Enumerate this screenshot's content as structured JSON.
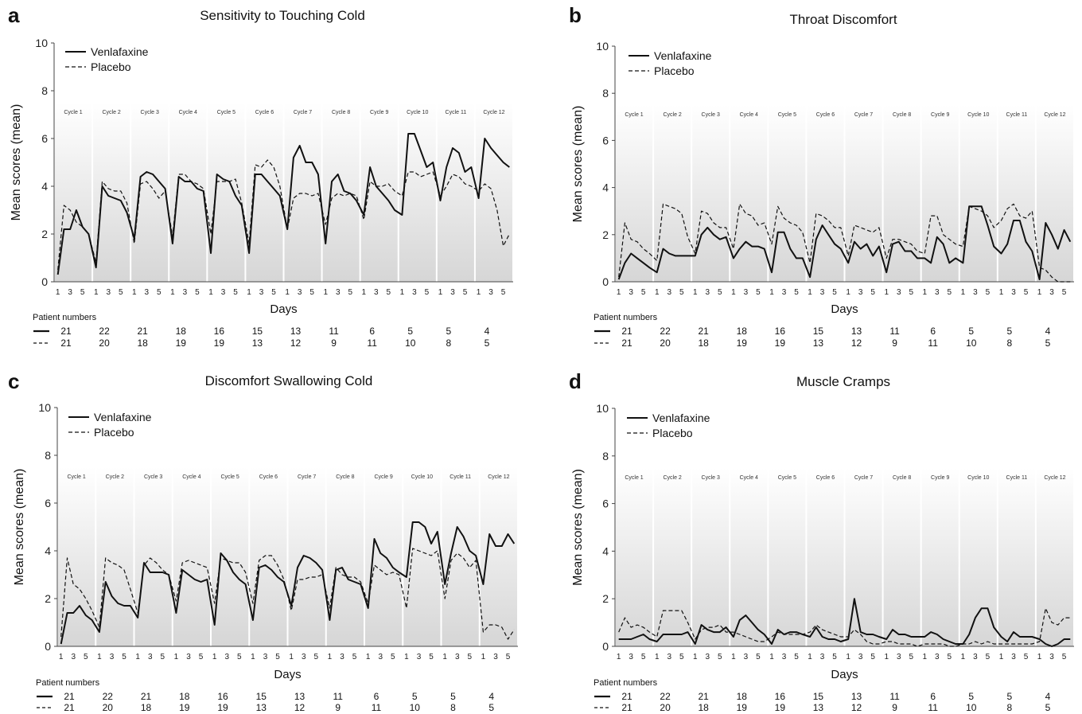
{
  "figure": {
    "x_tick_labels": [
      "1",
      "3",
      "5"
    ],
    "cycle_labels": [
      "Cycle 1",
      "Cycle 2",
      "Cycle 3",
      "Cycle 4",
      "Cycle 5",
      "Cycle 6",
      "Cycle 7",
      "Cycle 8",
      "Cycle 9",
      "Cycle 10",
      "Cycle 11",
      "Cycle 12"
    ],
    "patient_numbers_label": "Patient numbers",
    "patient_numbers": {
      "Venlafaxine": [
        "21",
        "22",
        "21",
        "18",
        "16",
        "15",
        "13",
        "11",
        "6",
        "5",
        "5",
        "4"
      ],
      "Placebo": [
        "21",
        "20",
        "18",
        "19",
        "19",
        "13",
        "12",
        "9",
        "11",
        "10",
        "8",
        "5"
      ]
    },
    "colors": {
      "venlafaxine": "#111111",
      "placebo": "#111111",
      "shading_top": "#ffffff",
      "shading_bottom": "#d9d9d9"
    }
  },
  "chart_data": [
    {
      "panel_label": "a",
      "type": "line",
      "title": "Sensitivity to Touching Cold",
      "xlabel": "Days",
      "ylabel": "Mean scores (mean)",
      "ylim": [
        0,
        10
      ],
      "yticks": [
        "0",
        "2",
        "4",
        "6",
        "8",
        "10"
      ],
      "legend": [
        "Venlafaxine",
        "Placebo"
      ],
      "legend_position": "top-left",
      "x": "cycle days 1-6 for cycles 1-12",
      "series": [
        {
          "name": "Venlafaxine",
          "style": "solid",
          "values": [
            0.3,
            2.2,
            2.2,
            3.0,
            2.3,
            2.0,
            0.6,
            4.0,
            3.6,
            3.5,
            3.4,
            2.9,
            1.8,
            4.4,
            4.6,
            4.5,
            4.2,
            3.9,
            1.6,
            4.4,
            4.2,
            4.2,
            3.9,
            3.8,
            1.2,
            4.5,
            4.3,
            4.2,
            3.6,
            3.2,
            1.2,
            4.5,
            4.5,
            4.2,
            3.9,
            3.6,
            2.2,
            5.2,
            5.7,
            5.0,
            5.0,
            4.5,
            1.6,
            4.2,
            4.5,
            3.8,
            3.7,
            3.4,
            2.8,
            4.8,
            4.0,
            3.7,
            3.4,
            3.0,
            2.8,
            6.2,
            6.2,
            5.5,
            4.8,
            5.0,
            3.4,
            4.8,
            5.6,
            5.4,
            4.6,
            4.8,
            3.5,
            6.0,
            5.6,
            5.3,
            5.0,
            4.8
          ]
        },
        {
          "name": "Placebo",
          "style": "dashed",
          "values": [
            0.5,
            3.2,
            3.0,
            2.5,
            2.3,
            2.0,
            0.8,
            4.2,
            3.9,
            3.8,
            3.8,
            3.3,
            1.6,
            4.1,
            4.2,
            3.9,
            3.5,
            3.8,
            1.9,
            4.5,
            4.5,
            4.2,
            4.1,
            3.9,
            2.0,
            4.2,
            4.2,
            4.2,
            4.3,
            3.3,
            1.6,
            4.9,
            4.8,
            5.1,
            4.8,
            4.0,
            2.2,
            3.5,
            3.7,
            3.7,
            3.6,
            3.7,
            2.4,
            3.5,
            3.7,
            3.6,
            3.7,
            3.6,
            2.6,
            4.2,
            4.0,
            4.0,
            4.1,
            3.8,
            3.6,
            4.6,
            4.6,
            4.4,
            4.5,
            4.6,
            3.6,
            4.0,
            4.5,
            4.4,
            4.1,
            4.0,
            3.8,
            4.1,
            3.9,
            3.0,
            1.5,
            2.0
          ]
        }
      ]
    },
    {
      "panel_label": "b",
      "type": "line",
      "title": "Throat Discomfort",
      "xlabel": "Days",
      "ylabel": "Mean scores (mean)",
      "ylim": [
        0,
        10
      ],
      "yticks": [
        "0",
        "2",
        "4",
        "6",
        "8",
        "10"
      ],
      "legend": [
        "Venlafaxine",
        "Placebo"
      ],
      "legend_position": "top-left",
      "x": "cycle days 1-6 for cycles 1-12",
      "series": [
        {
          "name": "Venlafaxine",
          "style": "solid",
          "values": [
            0.1,
            0.8,
            1.2,
            1.0,
            0.8,
            0.6,
            0.4,
            1.4,
            1.2,
            1.1,
            1.1,
            1.1,
            1.1,
            2.0,
            2.3,
            2.0,
            1.8,
            1.9,
            1.0,
            1.4,
            1.7,
            1.5,
            1.5,
            1.4,
            0.4,
            2.1,
            2.1,
            1.4,
            1.0,
            1.0,
            0.2,
            1.8,
            2.4,
            2.0,
            1.6,
            1.4,
            0.8,
            1.7,
            1.4,
            1.6,
            1.1,
            1.5,
            0.4,
            1.6,
            1.7,
            1.3,
            1.3,
            1.0,
            1.0,
            0.8,
            1.9,
            1.6,
            0.8,
            1.0,
            0.8,
            3.2,
            3.2,
            3.2,
            2.4,
            1.5,
            1.2,
            1.6,
            2.6,
            2.6,
            1.7,
            1.3,
            0.1,
            2.5,
            2.0,
            1.4,
            2.2,
            1.7
          ]
        },
        {
          "name": "Placebo",
          "style": "dashed",
          "values": [
            0.2,
            2.5,
            1.8,
            1.7,
            1.4,
            1.2,
            0.9,
            3.3,
            3.2,
            3.1,
            2.9,
            1.9,
            1.2,
            3.0,
            2.9,
            2.5,
            2.3,
            2.3,
            1.4,
            3.3,
            2.9,
            2.8,
            2.4,
            2.5,
            1.6,
            3.2,
            2.7,
            2.5,
            2.4,
            2.1,
            0.8,
            2.9,
            2.8,
            2.6,
            2.3,
            2.3,
            1.1,
            2.4,
            2.3,
            2.2,
            2.1,
            2.3,
            1.0,
            1.8,
            1.8,
            1.7,
            1.6,
            1.3,
            1.2,
            2.8,
            2.8,
            2.0,
            1.8,
            1.6,
            1.5,
            3.2,
            3.1,
            3.0,
            2.8,
            2.3,
            2.6,
            3.1,
            3.3,
            2.8,
            2.7,
            3.0,
            0.6,
            0.5,
            0.2,
            0.0,
            0.0,
            0.0
          ]
        }
      ]
    },
    {
      "panel_label": "c",
      "type": "line",
      "title": "Discomfort Swallowing Cold",
      "xlabel": "Days",
      "ylabel": "Mean scores (mean)",
      "ylim": [
        0,
        10
      ],
      "yticks": [
        "0",
        "2",
        "4",
        "6",
        "8",
        "10"
      ],
      "legend": [
        "Venlafaxine",
        "Placebo"
      ],
      "legend_position": "top-left",
      "x": "cycle days 1-6 for cycles 1-12",
      "series": [
        {
          "name": "Venlafaxine",
          "style": "solid",
          "values": [
            0.1,
            1.4,
            1.4,
            1.7,
            1.3,
            1.1,
            0.6,
            2.7,
            2.1,
            1.8,
            1.7,
            1.7,
            1.2,
            3.5,
            3.1,
            3.1,
            3.1,
            3.0,
            1.4,
            3.2,
            3.0,
            2.8,
            2.7,
            2.8,
            0.9,
            3.9,
            3.6,
            3.1,
            2.8,
            2.6,
            1.1,
            3.3,
            3.4,
            3.2,
            2.9,
            2.7,
            1.7,
            3.3,
            3.8,
            3.7,
            3.5,
            3.2,
            1.1,
            3.2,
            3.3,
            2.8,
            2.7,
            2.6,
            1.6,
            4.5,
            3.9,
            3.7,
            3.3,
            3.1,
            2.9,
            5.2,
            5.2,
            5.0,
            4.3,
            4.8,
            2.6,
            3.9,
            5.0,
            4.6,
            4.0,
            3.8,
            2.6,
            4.7,
            4.2,
            4.2,
            4.7,
            4.3
          ]
        },
        {
          "name": "Placebo",
          "style": "dashed",
          "values": [
            0.4,
            3.7,
            2.6,
            2.4,
            2.0,
            1.5,
            0.8,
            3.7,
            3.5,
            3.4,
            3.2,
            2.4,
            1.4,
            3.4,
            3.7,
            3.5,
            3.2,
            3.0,
            1.9,
            3.5,
            3.6,
            3.5,
            3.4,
            3.3,
            1.8,
            3.7,
            3.6,
            3.5,
            3.5,
            3.1,
            1.8,
            3.6,
            3.8,
            3.8,
            3.4,
            2.8,
            1.5,
            2.8,
            2.8,
            2.9,
            2.9,
            3.0,
            1.6,
            3.3,
            3.0,
            2.9,
            2.9,
            2.7,
            1.8,
            3.4,
            3.2,
            3.0,
            3.1,
            3.0,
            1.6,
            4.1,
            4.0,
            3.9,
            3.8,
            4.0,
            2.0,
            3.6,
            3.9,
            3.7,
            3.3,
            3.6,
            0.6,
            0.9,
            0.9,
            0.8,
            0.3,
            0.7
          ]
        }
      ]
    },
    {
      "panel_label": "d",
      "type": "line",
      "title": "Muscle Cramps",
      "xlabel": "Days",
      "ylabel": "Mean scores (mean)",
      "ylim": [
        0,
        10
      ],
      "yticks": [
        "0",
        "2",
        "4",
        "6",
        "8",
        "10"
      ],
      "legend": [
        "Venlafaxine",
        "Placebo"
      ],
      "legend_position": "top-left",
      "x": "cycle days 1-6 for cycles 1-12",
      "series": [
        {
          "name": "Venlafaxine",
          "style": "solid",
          "values": [
            0.3,
            0.3,
            0.3,
            0.4,
            0.5,
            0.3,
            0.2,
            0.5,
            0.5,
            0.5,
            0.5,
            0.6,
            0.1,
            0.9,
            0.7,
            0.6,
            0.6,
            0.8,
            0.4,
            1.1,
            1.3,
            1.0,
            0.7,
            0.5,
            0.1,
            0.7,
            0.5,
            0.6,
            0.6,
            0.5,
            0.4,
            0.8,
            0.4,
            0.3,
            0.3,
            0.2,
            0.3,
            2.0,
            0.6,
            0.5,
            0.5,
            0.4,
            0.3,
            0.7,
            0.5,
            0.5,
            0.4,
            0.4,
            0.4,
            0.6,
            0.5,
            0.3,
            0.2,
            0.1,
            0.1,
            0.5,
            1.2,
            1.6,
            1.6,
            0.8,
            0.4,
            0.2,
            0.6,
            0.4,
            0.4,
            0.4,
            0.3,
            0.1,
            0.0,
            0.1,
            0.3,
            0.3
          ]
        },
        {
          "name": "Placebo",
          "style": "dashed",
          "values": [
            0.6,
            1.2,
            0.8,
            0.9,
            0.8,
            0.6,
            0.4,
            1.5,
            1.5,
            1.5,
            1.5,
            1.0,
            0.3,
            0.7,
            0.8,
            0.8,
            0.9,
            0.6,
            0.6,
            0.5,
            0.4,
            0.3,
            0.2,
            0.2,
            0.4,
            0.6,
            0.5,
            0.5,
            0.5,
            0.5,
            0.6,
            0.9,
            0.7,
            0.6,
            0.5,
            0.4,
            0.4,
            0.7,
            0.5,
            0.2,
            0.1,
            0.1,
            0.2,
            0.2,
            0.1,
            0.1,
            0.1,
            0.0,
            0.1,
            0.1,
            0.1,
            0.1,
            0.0,
            0.0,
            0.1,
            0.1,
            0.2,
            0.1,
            0.2,
            0.1,
            0.1,
            0.1,
            0.1,
            0.1,
            0.1,
            0.1,
            0.2,
            1.6,
            1.0,
            0.9,
            1.2,
            1.2
          ]
        }
      ]
    }
  ]
}
